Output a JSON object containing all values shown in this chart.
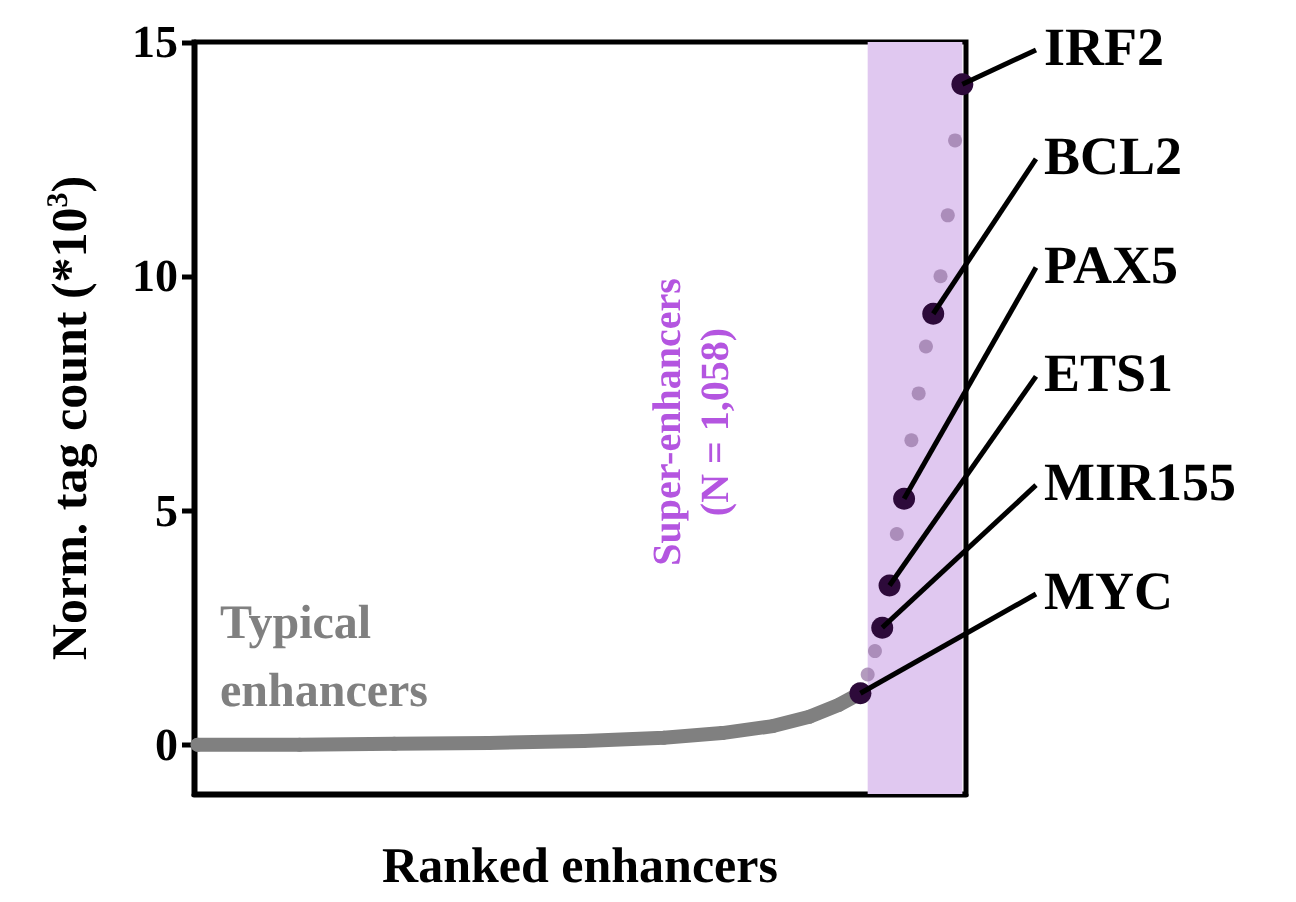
{
  "chart_data": {
    "type": "scatter",
    "xlabel": "Ranked enhancers",
    "ylabel": "Norm. tag count (*10$^{3}$)",
    "categories": [
      null,
      null,
      null,
      null,
      null,
      null,
      null,
      null,
      null,
      null,
      null,
      null,
      null,
      null,
      null,
      null,
      null,
      null,
      null,
      null,
      null,
      null,
      null,
      null,
      null,
      null,
      null,
      null,
      null,
      null,
      null,
      null,
      null,
      null,
      null,
      null,
      null,
      null,
      null,
      null,
      null,
      null,
      null,
      null,
      null,
      null,
      null,
      null,
      null,
      null,
      null,
      null,
      null,
      null,
      null,
      null,
      null,
      null,
      null,
      null,
      null,
      null,
      null,
      null,
      null,
      null,
      null,
      null,
      null,
      null,
      null,
      null,
      null,
      null,
      null,
      null,
      null,
      null,
      null,
      null,
      null,
      null,
      null,
      null,
      null,
      null,
      null,
      null,
      null,
      null,
      null,
      null,
      null,
      null,
      null,
      null,
      null,
      null,
      null,
      null,
      null,
      null,
      null,
      null,
      null,
      null
    ],
    "ylim": [
      -1.05,
      15
    ],
    "yticks": [
      0,
      5,
      10,
      15
    ],
    "grid": false,
    "marker": "circle",
    "series": [
      {
        "type": "line",
        "color": "#808080",
        "values": [
          0,
          null,
          null,
          null,
          null,
          null,
          null,
          null,
          null,
          null,
          null,
          null,
          null,
          null,
          0,
          null,
          null,
          null,
          null,
          null,
          null,
          null,
          null,
          null,
          null,
          null,
          null,
          0.02,
          null,
          null,
          null,
          null,
          null,
          null,
          null,
          null,
          null,
          null,
          null,
          null,
          0.04,
          null,
          null,
          null,
          null,
          null,
          null,
          null,
          null,
          null,
          null,
          null,
          null,
          0.08,
          null,
          null,
          null,
          null,
          null,
          null,
          null,
          null,
          null,
          null,
          0.15,
          null,
          null,
          null,
          null,
          null,
          null,
          null,
          0.25,
          null,
          null,
          null,
          null,
          null,
          null,
          0.4,
          null,
          null,
          null,
          null,
          0.6,
          null,
          null,
          null,
          0.85,
          null,
          null,
          1.1,
          null,
          null,
          null,
          null,
          null,
          null,
          null,
          null,
          null,
          null,
          null,
          null,
          null,
          null
        ]
      },
      {
        "color": "#9a7aa8",
        "values": [
          null,
          null,
          null,
          null,
          null,
          null,
          null,
          null,
          null,
          null,
          null,
          null,
          null,
          null,
          null,
          null,
          null,
          null,
          null,
          null,
          null,
          null,
          null,
          null,
          null,
          null,
          null,
          null,
          null,
          null,
          null,
          null,
          null,
          null,
          null,
          null,
          null,
          null,
          null,
          null,
          null,
          null,
          null,
          null,
          null,
          null,
          null,
          null,
          null,
          null,
          null,
          null,
          null,
          null,
          null,
          null,
          null,
          null,
          null,
          null,
          null,
          null,
          null,
          null,
          null,
          null,
          null,
          null,
          null,
          null,
          null,
          null,
          null,
          null,
          null,
          null,
          null,
          null,
          null,
          null,
          null,
          null,
          null,
          null,
          null,
          null,
          null,
          null,
          null,
          null,
          null,
          null,
          1.5,
          2.0,
          null,
          null,
          4.5,
          null,
          6.5,
          7.5,
          8.5,
          null,
          10.0,
          11.3,
          12.9,
          null
        ]
      },
      {
        "color": "#2d0a3a",
        "values": [
          null,
          null,
          null,
          null,
          null,
          null,
          null,
          null,
          null,
          null,
          null,
          null,
          null,
          null,
          null,
          null,
          null,
          null,
          null,
          null,
          null,
          null,
          null,
          null,
          null,
          null,
          null,
          null,
          null,
          null,
          null,
          null,
          null,
          null,
          null,
          null,
          null,
          null,
          null,
          null,
          null,
          null,
          null,
          null,
          null,
          null,
          null,
          null,
          null,
          null,
          null,
          null,
          null,
          null,
          null,
          null,
          null,
          null,
          null,
          null,
          null,
          null,
          null,
          null,
          null,
          null,
          null,
          null,
          null,
          null,
          null,
          null,
          null,
          null,
          null,
          null,
          null,
          null,
          null,
          null,
          null,
          null,
          null,
          null,
          null,
          null,
          null,
          null,
          null,
          null,
          null,
          1.1,
          null,
          null,
          2.5,
          3.4,
          null,
          5.25,
          null,
          null,
          null,
          9.2,
          null,
          null,
          null,
          14.1
        ]
      }
    ],
    "annotations": [
      "IRF2",
      "BCL2",
      "PAX5",
      "ETS1",
      "MIR155",
      "MYC",
      "Typical enhancers",
      "Super-enhancers\n(N = 1,058)"
    ]
  }
}
